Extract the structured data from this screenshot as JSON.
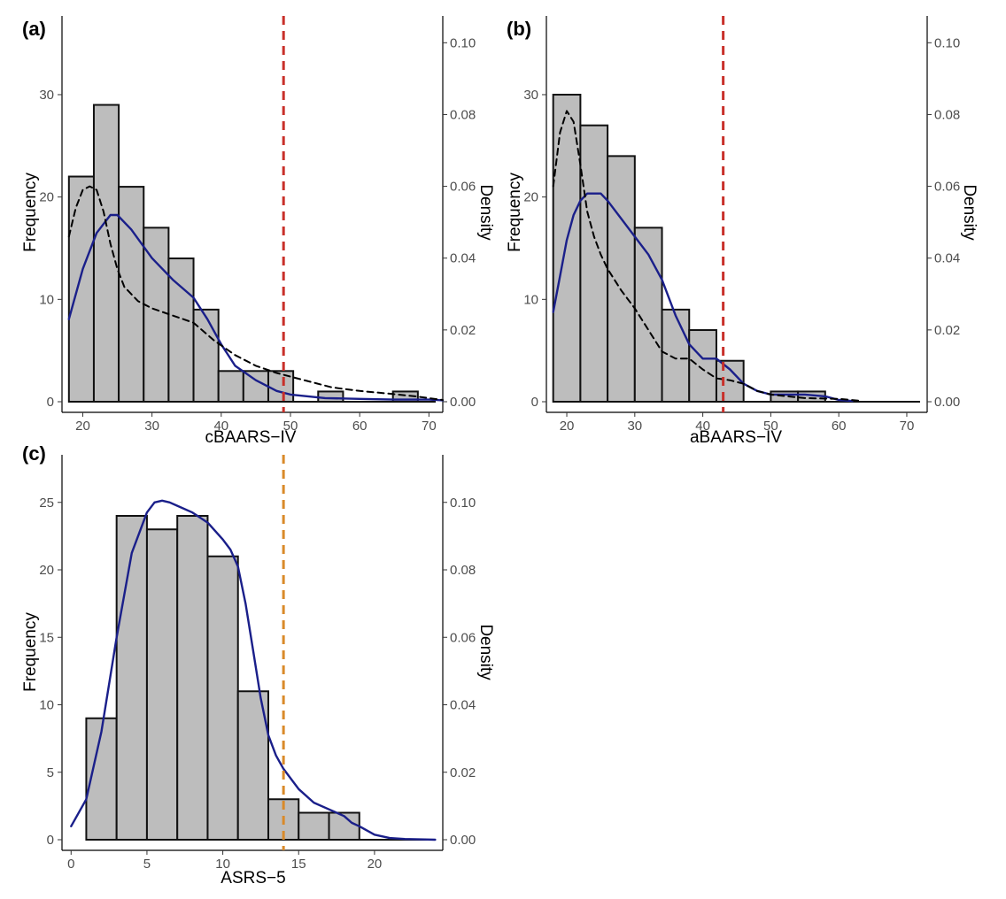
{
  "chart_data": [
    {
      "panel_label": "(a)",
      "type": "bar",
      "subtype": "histogram with density curves",
      "xlabel": "cBAARS−IV",
      "ylabel": "Frequency",
      "y2label": "Density",
      "xlim": [
        17,
        72
      ],
      "ylim": [
        0,
        37
      ],
      "y2lim": [
        0,
        0.1055
      ],
      "x_ticks": [
        20,
        30,
        40,
        50,
        60,
        70
      ],
      "y_ticks": [
        0,
        10,
        20,
        30
      ],
      "y2_ticks": [
        "0.00",
        "0.02",
        "0.04",
        "0.06",
        "0.08",
        "0.10"
      ],
      "bins": [
        {
          "x0": 18,
          "x1": 21.6,
          "count": 22
        },
        {
          "x0": 21.6,
          "x1": 25.2,
          "count": 29
        },
        {
          "x0": 25.2,
          "x1": 28.8,
          "count": 21
        },
        {
          "x0": 28.8,
          "x1": 32.4,
          "count": 17
        },
        {
          "x0": 32.4,
          "x1": 36.0,
          "count": 14
        },
        {
          "x0": 36.0,
          "x1": 39.6,
          "count": 9
        },
        {
          "x0": 39.6,
          "x1": 43.2,
          "count": 3
        },
        {
          "x0": 43.2,
          "x1": 46.8,
          "count": 3
        },
        {
          "x0": 46.8,
          "x1": 50.4,
          "count": 3
        },
        {
          "x0": 50.4,
          "x1": 54.0,
          "count": 0
        },
        {
          "x0": 54.0,
          "x1": 57.6,
          "count": 1
        },
        {
          "x0": 57.6,
          "x1": 61.2,
          "count": 0
        },
        {
          "x0": 61.2,
          "x1": 64.8,
          "count": 0
        },
        {
          "x0": 64.8,
          "x1": 68.4,
          "count": 1
        },
        {
          "x0": 68.4,
          "x1": 72.0,
          "count": 0
        }
      ],
      "cutoff_line": {
        "x": 49,
        "color": "#c8302a"
      },
      "density_curves": [
        {
          "style": "solid",
          "color": "#1a1f8a",
          "x": [
            18,
            20,
            22,
            24,
            25,
            27,
            30,
            33,
            36,
            38,
            40,
            42,
            45,
            48,
            50,
            55,
            60,
            65,
            70,
            72
          ],
          "y": [
            0.023,
            0.037,
            0.047,
            0.052,
            0.052,
            0.048,
            0.04,
            0.034,
            0.029,
            0.023,
            0.016,
            0.01,
            0.006,
            0.003,
            0.002,
            0.001,
            0.0008,
            0.0006,
            0.0006,
            0.0004
          ]
        },
        {
          "style": "dashed",
          "color": "#000000",
          "x": [
            18,
            19,
            20,
            21,
            22,
            23,
            24,
            25,
            26,
            28,
            30,
            33,
            36,
            39,
            42,
            45,
            48,
            52,
            56,
            60,
            64,
            68,
            72
          ],
          "y": [
            0.046,
            0.054,
            0.059,
            0.06,
            0.059,
            0.053,
            0.044,
            0.037,
            0.032,
            0.028,
            0.026,
            0.024,
            0.022,
            0.017,
            0.013,
            0.01,
            0.008,
            0.006,
            0.004,
            0.003,
            0.0023,
            0.0015,
            0.0005
          ]
        }
      ]
    },
    {
      "panel_label": "(b)",
      "type": "bar",
      "subtype": "histogram with density curves",
      "xlabel": "aBAARS−IV",
      "ylabel": "Frequency",
      "y2label": "Density",
      "xlim": [
        17,
        73
      ],
      "ylim": [
        0,
        37
      ],
      "y2lim": [
        0,
        0.1055
      ],
      "x_ticks": [
        20,
        30,
        40,
        50,
        60,
        70
      ],
      "y_ticks": [
        0,
        10,
        20,
        30
      ],
      "y2_ticks": [
        "0.00",
        "0.02",
        "0.04",
        "0.06",
        "0.08",
        "0.10"
      ],
      "bins": [
        {
          "x0": 18,
          "x1": 22,
          "count": 30
        },
        {
          "x0": 22,
          "x1": 26,
          "count": 27
        },
        {
          "x0": 26,
          "x1": 30,
          "count": 24
        },
        {
          "x0": 30,
          "x1": 34,
          "count": 17
        },
        {
          "x0": 34,
          "x1": 38,
          "count": 9
        },
        {
          "x0": 38,
          "x1": 42,
          "count": 7
        },
        {
          "x0": 42,
          "x1": 46,
          "count": 4
        },
        {
          "x0": 46,
          "x1": 50,
          "count": 0
        },
        {
          "x0": 50,
          "x1": 54,
          "count": 1
        },
        {
          "x0": 54,
          "x1": 58,
          "count": 1
        },
        {
          "x0": 58,
          "x1": 62,
          "count": 0
        }
      ],
      "cutoff_line": {
        "x": 43,
        "color": "#c8302a"
      },
      "density_curves": [
        {
          "style": "solid",
          "color": "#1a1f8a",
          "x": [
            18,
            19,
            20,
            21,
            22,
            23,
            24,
            25,
            26,
            28,
            30,
            32,
            34,
            36,
            38,
            40,
            42,
            44,
            46,
            48,
            50,
            55,
            58,
            60,
            62
          ],
          "y": [
            0.025,
            0.035,
            0.045,
            0.052,
            0.056,
            0.058,
            0.058,
            0.058,
            0.056,
            0.051,
            0.046,
            0.041,
            0.034,
            0.024,
            0.016,
            0.012,
            0.012,
            0.009,
            0.005,
            0.003,
            0.002,
            0.002,
            0.0015,
            0.0005,
            0.0002
          ]
        },
        {
          "style": "dashed",
          "color": "#000000",
          "x": [
            18,
            19,
            20,
            21,
            22,
            23,
            24,
            25,
            26,
            28,
            30,
            32,
            34,
            36,
            38,
            40,
            42,
            44,
            46,
            48,
            50,
            55,
            60,
            63
          ],
          "y": [
            0.06,
            0.075,
            0.081,
            0.078,
            0.066,
            0.053,
            0.046,
            0.041,
            0.037,
            0.031,
            0.026,
            0.02,
            0.014,
            0.012,
            0.012,
            0.009,
            0.0065,
            0.006,
            0.005,
            0.003,
            0.002,
            0.001,
            0.0008,
            0.0003
          ]
        }
      ]
    },
    {
      "panel_label": "(c)",
      "type": "bar",
      "subtype": "histogram with density curve",
      "xlabel": "ASRS−5",
      "ylabel": "Frequency",
      "y2label": "Density",
      "xlim": [
        -0.6,
        24.5
      ],
      "ylim": [
        0,
        28
      ],
      "y2lim": [
        0,
        0.112
      ],
      "x_ticks": [
        0,
        5,
        10,
        15,
        20
      ],
      "y_ticks": [
        0,
        5,
        10,
        15,
        20,
        25
      ],
      "y2_ticks": [
        "0.00",
        "0.02",
        "0.04",
        "0.06",
        "0.08",
        "0.10"
      ],
      "bins": [
        {
          "x0": 1,
          "x1": 3,
          "count": 9
        },
        {
          "x0": 3,
          "x1": 5,
          "count": 24
        },
        {
          "x0": 5,
          "x1": 7,
          "count": 23
        },
        {
          "x0": 7,
          "x1": 9,
          "count": 24
        },
        {
          "x0": 9,
          "x1": 11,
          "count": 21
        },
        {
          "x0": 11,
          "x1": 13,
          "count": 11
        },
        {
          "x0": 13,
          "x1": 15,
          "count": 3
        },
        {
          "x0": 15,
          "x1": 17,
          "count": 2
        },
        {
          "x0": 17,
          "x1": 19,
          "count": 2
        }
      ],
      "cutoff_line": {
        "x": 14,
        "color": "#d98a2a"
      },
      "density_curves": [
        {
          "style": "solid",
          "color": "#1a1f8a",
          "x": [
            0,
            1,
            2,
            3,
            4,
            5,
            5.5,
            6,
            6.5,
            7,
            8,
            9,
            10,
            10.5,
            11,
            11.5,
            12,
            12.5,
            13,
            13.5,
            14,
            15,
            16,
            17,
            18,
            18.5,
            19,
            20,
            21,
            22,
            23,
            24
          ],
          "y": [
            0.004,
            0.012,
            0.032,
            0.06,
            0.085,
            0.097,
            0.1,
            0.1005,
            0.1,
            0.099,
            0.097,
            0.094,
            0.089,
            0.086,
            0.081,
            0.07,
            0.056,
            0.042,
            0.031,
            0.025,
            0.021,
            0.015,
            0.011,
            0.009,
            0.007,
            0.005,
            0.004,
            0.0015,
            0.0005,
            0.0002,
            0.0001,
            0.0
          ]
        }
      ]
    }
  ]
}
